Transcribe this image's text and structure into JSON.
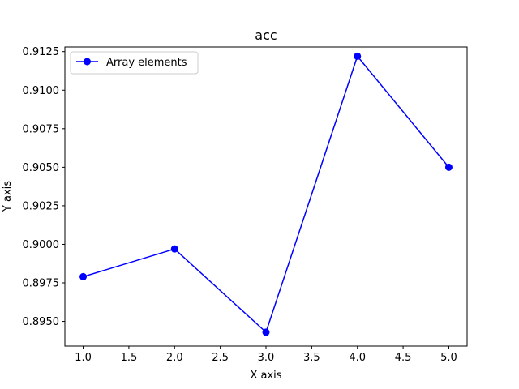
{
  "chart_data": {
    "type": "line",
    "title": "acc",
    "xlabel": "X axis",
    "ylabel": "Y axis",
    "xlim": [
      0.8,
      5.2
    ],
    "ylim": [
      0.8934,
      0.9128
    ],
    "x_ticks": [
      1.0,
      1.5,
      2.0,
      2.5,
      3.0,
      3.5,
      4.0,
      4.5,
      5.0
    ],
    "x_tick_labels": [
      "1.0",
      "1.5",
      "2.0",
      "2.5",
      "3.0",
      "3.5",
      "4.0",
      "4.5",
      "5.0"
    ],
    "y_ticks": [
      0.895,
      0.8975,
      0.9,
      0.9025,
      0.905,
      0.9075,
      0.91,
      0.9125
    ],
    "y_tick_labels": [
      "0.8950",
      "0.8975",
      "0.9000",
      "0.9025",
      "0.9050",
      "0.9075",
      "0.9100",
      "0.9125"
    ],
    "grid": false,
    "legend_position": "upper-left",
    "series": [
      {
        "name": "Array elements",
        "color": "#0000ff",
        "marker": "circle",
        "x": [
          1,
          2,
          3,
          4,
          5
        ],
        "y": [
          0.8979,
          0.8997,
          0.8943,
          0.9122,
          0.905
        ]
      }
    ]
  }
}
